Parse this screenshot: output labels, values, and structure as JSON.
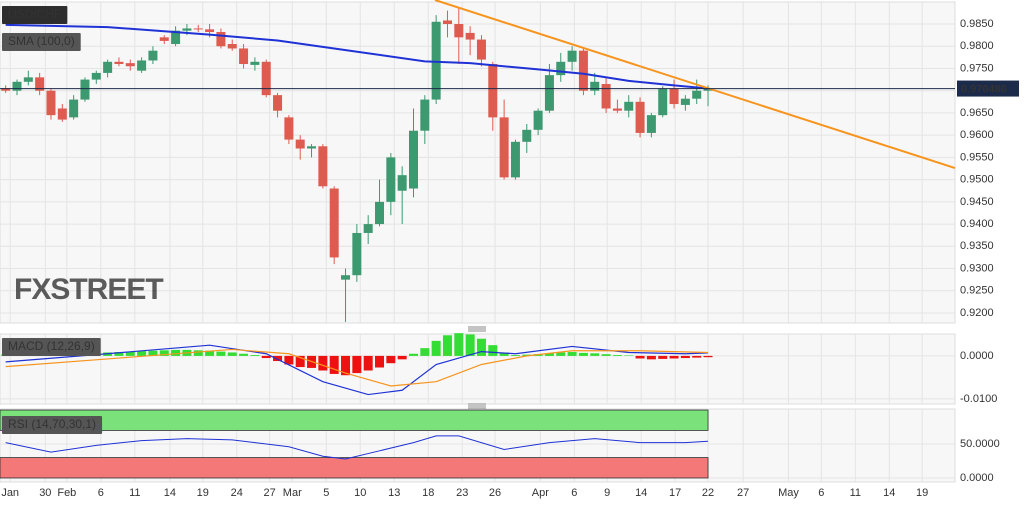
{
  "chart_data": [
    {
      "type": "candlestick",
      "title": "USD/CHF",
      "indicator_label": "SMA (100,0)",
      "watermark": "FXSTREET",
      "up_color": "#3d9970",
      "down_color": "#de5b4f",
      "x": [
        0,
        1,
        2,
        3,
        4,
        5,
        6,
        7,
        8,
        9,
        10,
        11,
        12,
        13,
        14,
        15,
        16,
        17,
        18,
        19,
        20,
        21,
        22,
        23,
        24,
        25,
        26,
        27,
        28,
        29,
        30,
        31,
        32,
        33,
        34,
        35,
        36,
        37,
        38,
        39,
        40,
        41,
        42,
        43,
        44,
        45,
        46,
        47,
        48,
        49,
        50,
        51,
        52,
        53,
        54,
        55,
        56,
        57,
        58,
        59,
        60,
        61,
        62
      ],
      "open": [
        0.9706,
        0.97,
        0.972,
        0.973,
        0.97,
        0.966,
        0.964,
        0.968,
        0.9725,
        0.974,
        0.9765,
        0.9762,
        0.9745,
        0.9768,
        0.982,
        0.9805,
        0.9835,
        0.984,
        0.9838,
        0.9832,
        0.9805,
        0.9795,
        0.9758,
        0.9765,
        0.969,
        0.964,
        0.959,
        0.957,
        0.9575,
        0.948,
        0.9275,
        0.9285,
        0.938,
        0.94,
        0.945,
        0.9475,
        0.948,
        0.961,
        0.968,
        0.9858,
        0.985,
        0.983,
        0.9815,
        0.976,
        0.964,
        0.9505,
        0.9585,
        0.9612,
        0.9655,
        0.9735,
        0.9765,
        0.979,
        0.97,
        0.9715,
        0.966,
        0.9655,
        0.9675,
        0.9605,
        0.9645,
        0.9705,
        0.9668,
        0.9682,
        0.97
      ],
      "high": [
        0.9712,
        0.9725,
        0.9745,
        0.974,
        0.9705,
        0.967,
        0.969,
        0.973,
        0.9745,
        0.977,
        0.9775,
        0.977,
        0.9775,
        0.98,
        0.9825,
        0.9845,
        0.985,
        0.9848,
        0.985,
        0.984,
        0.9815,
        0.9805,
        0.9775,
        0.977,
        0.9695,
        0.9645,
        0.96,
        0.958,
        0.958,
        0.9485,
        0.93,
        0.94,
        0.942,
        0.95,
        0.956,
        0.953,
        0.966,
        0.969,
        0.987,
        0.988,
        0.9885,
        0.9845,
        0.9825,
        0.9765,
        0.968,
        0.959,
        0.9625,
        0.966,
        0.976,
        0.9785,
        0.98,
        0.9795,
        0.974,
        0.973,
        0.968,
        0.969,
        0.9685,
        0.965,
        0.971,
        0.9725,
        0.969,
        0.9725,
        0.9712
      ],
      "low": [
        0.9695,
        0.969,
        0.9712,
        0.969,
        0.9635,
        0.963,
        0.9635,
        0.9675,
        0.9715,
        0.973,
        0.9755,
        0.9745,
        0.974,
        0.976,
        0.9805,
        0.98,
        0.9825,
        0.9832,
        0.982,
        0.9795,
        0.979,
        0.975,
        0.9745,
        0.9685,
        0.964,
        0.958,
        0.9545,
        0.955,
        0.948,
        0.931,
        0.918,
        0.927,
        0.9355,
        0.9395,
        0.942,
        0.94,
        0.946,
        0.958,
        0.967,
        0.982,
        0.976,
        0.978,
        0.9755,
        0.961,
        0.95,
        0.95,
        0.956,
        0.96,
        0.965,
        0.972,
        0.9745,
        0.969,
        0.969,
        0.965,
        0.965,
        0.964,
        0.9595,
        0.9595,
        0.964,
        0.966,
        0.9655,
        0.967,
        0.9665
      ],
      "close": [
        0.97,
        0.972,
        0.973,
        0.97,
        0.9645,
        0.9635,
        0.968,
        0.9725,
        0.974,
        0.9765,
        0.976,
        0.9755,
        0.9768,
        0.979,
        0.9812,
        0.9835,
        0.984,
        0.9838,
        0.9832,
        0.98,
        0.9795,
        0.976,
        0.9765,
        0.969,
        0.9655,
        0.959,
        0.957,
        0.9575,
        0.9485,
        0.9325,
        0.9285,
        0.938,
        0.94,
        0.945,
        0.955,
        0.951,
        0.961,
        0.968,
        0.9855,
        0.985,
        0.982,
        0.9815,
        0.977,
        0.964,
        0.9505,
        0.9585,
        0.9612,
        0.9655,
        0.9735,
        0.9765,
        0.979,
        0.97,
        0.972,
        0.966,
        0.9655,
        0.9675,
        0.9605,
        0.9645,
        0.9705,
        0.967,
        0.9682,
        0.97,
        0.9705
      ],
      "sma": {
        "color": "#1f32d6",
        "x": [
          0,
          9,
          18,
          24,
          29,
          37,
          41,
          47,
          51,
          55,
          59,
          62
        ],
        "values": [
          0.9848,
          0.9843,
          0.9826,
          0.9813,
          0.9795,
          0.9766,
          0.9762,
          0.9748,
          0.9738,
          0.9722,
          0.9712,
          0.9705
        ]
      },
      "trendline": {
        "color": "#f7941d",
        "x": [
          37.9,
          83.8
        ],
        "values": [
          0.9904,
          0.9526
        ]
      },
      "last_price": {
        "value": 0.97048,
        "label": "0.970480"
      },
      "xlim": [
        -0.5,
        83.8
      ],
      "ylim": [
        0.91775,
        0.98995
      ],
      "yticks": [
        {
          "value": 0.92,
          "label": "0.9200"
        },
        {
          "value": 0.925,
          "label": "0.9250"
        },
        {
          "value": 0.93,
          "label": "0.9300"
        },
        {
          "value": 0.935,
          "label": "0.9350"
        },
        {
          "value": 0.94,
          "label": "0.9400"
        },
        {
          "value": 0.945,
          "label": "0.9450"
        },
        {
          "value": 0.95,
          "label": "0.9500"
        },
        {
          "value": 0.955,
          "label": "0.9550"
        },
        {
          "value": 0.96,
          "label": "0.9600"
        },
        {
          "value": 0.965,
          "label": "0.9650"
        },
        {
          "value": 0.97,
          "label": "0.9700"
        },
        {
          "value": 0.975,
          "label": "0.9750"
        },
        {
          "value": 0.98,
          "label": "0.9800"
        },
        {
          "value": 0.985,
          "label": "0.9850"
        }
      ],
      "xticks": [
        {
          "value": 0.4,
          "label": "Jan"
        },
        {
          "value": 3.5,
          "label": "30"
        },
        {
          "value": 5.4,
          "label": "Feb"
        },
        {
          "value": 8.4,
          "label": "6"
        },
        {
          "value": 11.4,
          "label": "11"
        },
        {
          "value": 14.5,
          "label": "14"
        },
        {
          "value": 17.4,
          "label": "19"
        },
        {
          "value": 20.4,
          "label": "24"
        },
        {
          "value": 23.3,
          "label": "27"
        },
        {
          "value": 25.3,
          "label": "Mar"
        },
        {
          "value": 28.3,
          "label": "5"
        },
        {
          "value": 31.3,
          "label": "10"
        },
        {
          "value": 34.3,
          "label": "13"
        },
        {
          "value": 37.3,
          "label": "18"
        },
        {
          "value": 40.3,
          "label": "23"
        },
        {
          "value": 43.2,
          "label": "26"
        },
        {
          "value": 47.2,
          "label": "Apr"
        },
        {
          "value": 50.2,
          "label": "6"
        },
        {
          "value": 53.1,
          "label": "9"
        },
        {
          "value": 56.1,
          "label": "14"
        },
        {
          "value": 59.1,
          "label": "17"
        },
        {
          "value": 62.0,
          "label": "22"
        },
        {
          "value": 65.1,
          "label": "27"
        },
        {
          "value": 69.1,
          "label": "May"
        },
        {
          "value": 72.0,
          "label": "6"
        },
        {
          "value": 75.0,
          "label": "11"
        },
        {
          "value": 78.0,
          "label": "14"
        },
        {
          "value": 80.9,
          "label": "19"
        }
      ]
    },
    {
      "type": "macd",
      "title": "MACD (12,26,9)",
      "histogram": {
        "up_color": "#33dd33",
        "down_color": "#ee1111",
        "values": [
          0.0003,
          0.0004,
          0.0004,
          0.0003,
          0.0002,
          0.0001,
          0.0002,
          0.0004,
          0.0006,
          0.0008,
          0.0009,
          0.001,
          0.0011,
          0.0012,
          0.0013,
          0.0014,
          0.0014,
          0.0013,
          0.0012,
          0.001,
          0.0008,
          0.0005,
          0.0002,
          -0.0005,
          -0.0012,
          -0.002,
          -0.0026,
          -0.0028,
          -0.0034,
          -0.0042,
          -0.0045,
          -0.004,
          -0.0034,
          -0.0027,
          -0.0017,
          -0.0008,
          0.0005,
          0.0018,
          0.0035,
          0.0048,
          0.0053,
          0.005,
          0.004,
          0.0025,
          0.0008,
          0.0002,
          0.0003,
          0.0004,
          0.0006,
          0.0008,
          0.0009,
          0.0007,
          0.0006,
          0.0004,
          0.0002,
          0.0001,
          -0.0006,
          -0.0008,
          -0.0007,
          -0.0006,
          -0.0005,
          -0.0004,
          -0.0003
        ]
      },
      "macd_line": {
        "color": "#1f32d6",
        "x": [
          0,
          8,
          18,
          23,
          28,
          32,
          35,
          38,
          42,
          45,
          50,
          55,
          60,
          62
        ],
        "values": [
          -0.0014,
          0.0003,
          0.0025,
          0.0005,
          -0.006,
          -0.009,
          -0.008,
          -0.002,
          0.001,
          0.0005,
          0.0022,
          0.0008,
          0.0005,
          0.0007
        ]
      },
      "signal_line": {
        "color": "#f7941d",
        "x": [
          0,
          10,
          20,
          25,
          30,
          34,
          38,
          42,
          46,
          50,
          56,
          62
        ],
        "values": [
          -0.0025,
          -0.0005,
          0.0015,
          0.0005,
          -0.004,
          -0.007,
          -0.006,
          -0.002,
          0.0,
          0.0012,
          0.0012,
          0.0008
        ]
      },
      "ylim": [
        -0.0112,
        0.0051
      ],
      "yticks": [
        {
          "value": 0,
          "label": "0.0000"
        },
        {
          "value": -0.01,
          "label": "-0.0100"
        }
      ]
    },
    {
      "type": "rsi",
      "title": "RSI (14,70,30,1)",
      "bands": [
        {
          "range": [
            70,
            100
          ],
          "color": "#7be27b"
        },
        {
          "range": [
            0,
            30
          ],
          "color": "#f47878"
        }
      ],
      "line": {
        "color": "#1f32d6",
        "x": [
          0,
          4,
          8,
          12,
          16,
          20,
          25,
          28,
          30,
          33,
          36,
          38,
          40,
          44,
          48,
          52,
          56,
          60,
          62
        ],
        "values": [
          52,
          38,
          48,
          55,
          58,
          56,
          46,
          32,
          28,
          40,
          52,
          62,
          62,
          42,
          52,
          58,
          52,
          52,
          54
        ]
      },
      "ylim": [
        -5.9,
        101.5
      ],
      "yticks": [
        {
          "value": 50,
          "label": "50.0000"
        },
        {
          "value": 0,
          "label": "0.0000"
        }
      ]
    }
  ]
}
